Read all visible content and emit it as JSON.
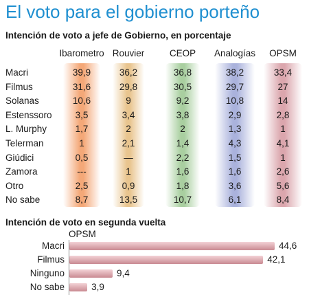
{
  "title": "El voto para el gobierno porteño",
  "chart_data": [
    {
      "type": "table",
      "title": "Intención de voto a jefe de Gobierno, en porcentaje",
      "columns": [
        "Ibarometro",
        "Rouvier",
        "CEOP",
        "Analogías",
        "OPSM"
      ],
      "column_colors": [
        "#f4a878",
        "#e9c58f",
        "#a9cfa0",
        "#aab2dc",
        "#dba6ad"
      ],
      "rows": [
        {
          "label": "Macri",
          "values": [
            "39,9",
            "36,2",
            "36,8",
            "38,2",
            "33,4"
          ]
        },
        {
          "label": "Filmus",
          "values": [
            "31,6",
            "29,8",
            "30,5",
            "29,7",
            "27"
          ]
        },
        {
          "label": "Solanas",
          "values": [
            "10,6",
            "9",
            "9,2",
            "10,8",
            "14"
          ]
        },
        {
          "label": "Estenssoro",
          "values": [
            "3,5",
            "3,4",
            "3,8",
            "2,9",
            "2,8"
          ]
        },
        {
          "label": "L. Murphy",
          "values": [
            "1,7",
            "2",
            "2",
            "1,3",
            "1"
          ]
        },
        {
          "label": "Telerman",
          "values": [
            "1",
            "2,1",
            "1,4",
            "4,3",
            "4,1"
          ]
        },
        {
          "label": "Giúdici",
          "values": [
            "0,5",
            "—",
            "2,2",
            "1,5",
            "1"
          ]
        },
        {
          "label": "Zamora",
          "values": [
            "---",
            "1",
            "1,6",
            "1,6",
            "2,6"
          ]
        },
        {
          "label": "Otro",
          "values": [
            "2,5",
            "0,9",
            "1,8",
            "3,6",
            "5,6"
          ]
        },
        {
          "label": "No sabe",
          "values": [
            "8,7",
            "13,5",
            "10,7",
            "6,1",
            "8,4"
          ]
        }
      ]
    },
    {
      "type": "bar",
      "orientation": "horizontal",
      "title": "Intención de voto en segunda vuelta",
      "series_name": "OPSM",
      "categories": [
        "Macri",
        "Filmus",
        "Ninguno",
        "No sabe"
      ],
      "values": [
        44.6,
        42.1,
        9.4,
        3.9
      ],
      "value_labels": [
        "44,6",
        "42,1",
        "9,4",
        "3,9"
      ],
      "xlim": [
        0,
        44.6
      ],
      "bar_color": "#d9a0a8"
    }
  ]
}
